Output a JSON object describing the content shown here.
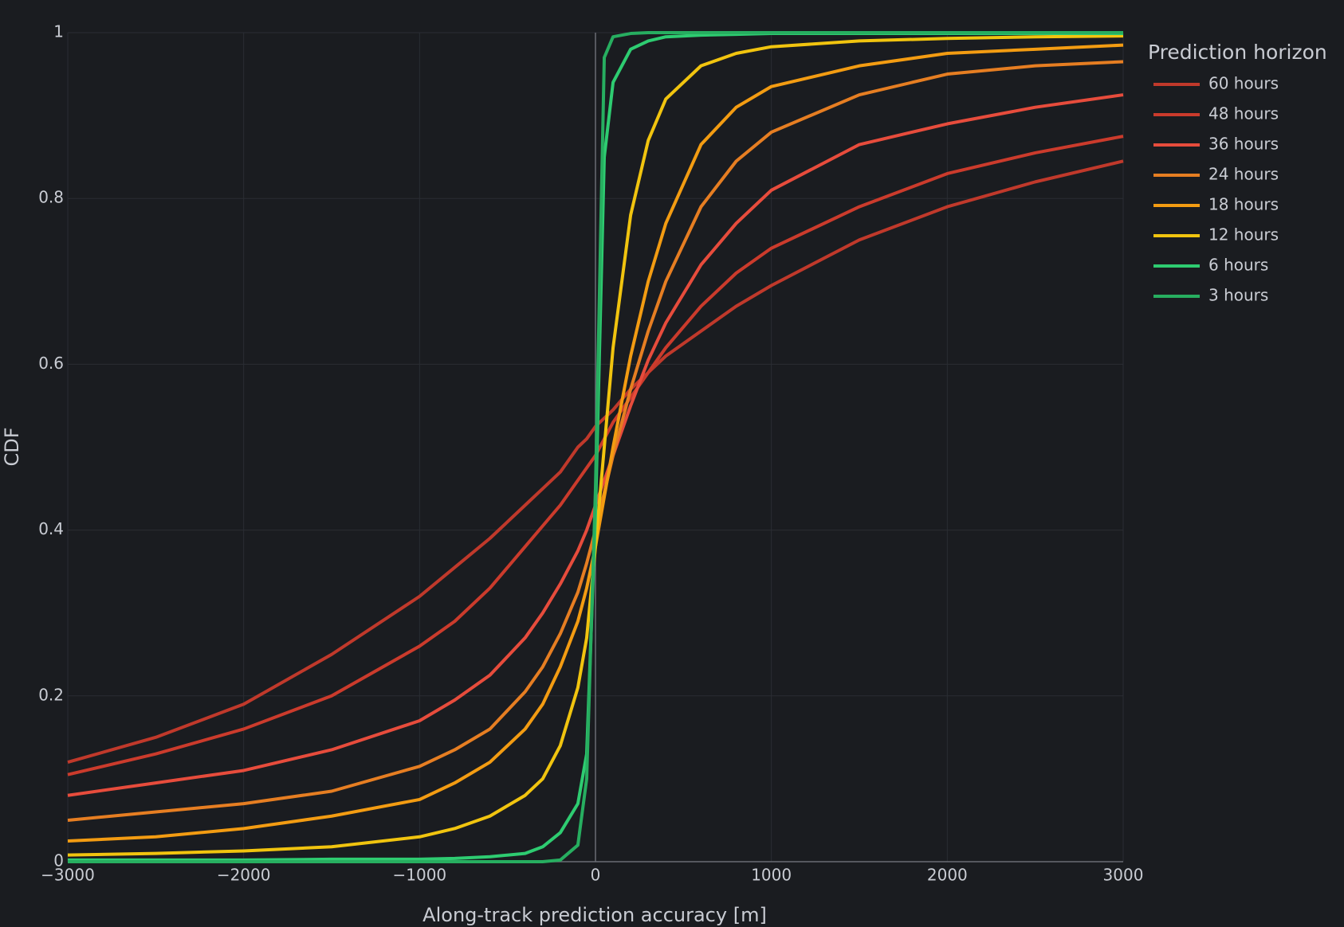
{
  "chart_data": {
    "type": "line",
    "x_label": "Along-track prediction accuracy [m]",
    "y_label": "CDF",
    "legend_title": "Prediction horizon",
    "legend_position": "right",
    "grid": true,
    "x": [
      -3000,
      -2500,
      -2000,
      -1500,
      -1000,
      -800,
      -600,
      -400,
      -300,
      -200,
      -100,
      -50,
      0,
      50,
      100,
      200,
      300,
      400,
      600,
      800,
      1000,
      1500,
      2000,
      2500,
      3000
    ],
    "xlim": [
      -3000,
      3000
    ],
    "xticks": [
      {
        "value": -3000,
        "label": "−3000"
      },
      {
        "value": -2000,
        "label": "−2000"
      },
      {
        "value": -1000,
        "label": "−1000"
      },
      0,
      1000,
      2000,
      3000
    ],
    "ylim": [
      0,
      1
    ],
    "yticks": [
      0,
      0.2,
      0.4,
      0.6,
      0.8,
      1
    ],
    "series": [
      {
        "name": "60 hours",
        "color": "#c0392b",
        "values": [
          0.12,
          0.15,
          0.19,
          0.25,
          0.32,
          0.355,
          0.39,
          0.43,
          0.45,
          0.47,
          0.5,
          0.51,
          0.525,
          0.535,
          0.545,
          0.57,
          0.59,
          0.61,
          0.64,
          0.67,
          0.695,
          0.75,
          0.79,
          0.82,
          0.845
        ]
      },
      {
        "name": "48 hours",
        "color": "#cb3b2c",
        "values": [
          0.105,
          0.13,
          0.16,
          0.2,
          0.26,
          0.29,
          0.33,
          0.38,
          0.405,
          0.43,
          0.46,
          0.475,
          0.49,
          0.51,
          0.53,
          0.56,
          0.59,
          0.62,
          0.67,
          0.71,
          0.74,
          0.79,
          0.83,
          0.855,
          0.875
        ]
      },
      {
        "name": "36 hours",
        "color": "#e74c3c",
        "values": [
          0.08,
          0.095,
          0.11,
          0.135,
          0.17,
          0.195,
          0.225,
          0.27,
          0.3,
          0.335,
          0.375,
          0.4,
          0.43,
          0.46,
          0.49,
          0.55,
          0.605,
          0.65,
          0.72,
          0.77,
          0.81,
          0.865,
          0.89,
          0.91,
          0.925
        ]
      },
      {
        "name": "24 hours",
        "color": "#e67e22",
        "values": [
          0.05,
          0.06,
          0.07,
          0.085,
          0.115,
          0.135,
          0.16,
          0.205,
          0.235,
          0.275,
          0.325,
          0.36,
          0.4,
          0.445,
          0.49,
          0.57,
          0.64,
          0.7,
          0.79,
          0.845,
          0.88,
          0.925,
          0.95,
          0.96,
          0.965
        ]
      },
      {
        "name": "18 hours",
        "color": "#f39c12",
        "values": [
          0.025,
          0.03,
          0.04,
          0.055,
          0.075,
          0.095,
          0.12,
          0.16,
          0.19,
          0.235,
          0.29,
          0.33,
          0.38,
          0.44,
          0.5,
          0.61,
          0.7,
          0.77,
          0.865,
          0.91,
          0.935,
          0.96,
          0.975,
          0.98,
          0.985
        ]
      },
      {
        "name": "12 hours",
        "color": "#f1c40f",
        "values": [
          0.008,
          0.01,
          0.013,
          0.018,
          0.03,
          0.04,
          0.055,
          0.08,
          0.1,
          0.14,
          0.21,
          0.27,
          0.38,
          0.5,
          0.62,
          0.78,
          0.87,
          0.92,
          0.96,
          0.975,
          0.983,
          0.99,
          0.993,
          0.995,
          0.996
        ]
      },
      {
        "name": "6 hours",
        "color": "#2ecc71",
        "values": [
          0.002,
          0.002,
          0.002,
          0.003,
          0.003,
          0.004,
          0.006,
          0.01,
          0.018,
          0.035,
          0.07,
          0.13,
          0.42,
          0.85,
          0.94,
          0.98,
          0.99,
          0.995,
          0.997,
          0.998,
          0.999,
          0.999,
          0.999,
          0.999,
          0.999
        ]
      },
      {
        "name": "3 hours",
        "color": "#27ae60",
        "values": [
          0,
          0,
          0,
          0,
          0,
          0,
          0,
          0,
          0,
          0.002,
          0.02,
          0.1,
          0.45,
          0.97,
          0.995,
          0.999,
          1,
          1,
          1,
          1,
          1,
          1,
          1,
          1,
          1
        ]
      }
    ]
  }
}
